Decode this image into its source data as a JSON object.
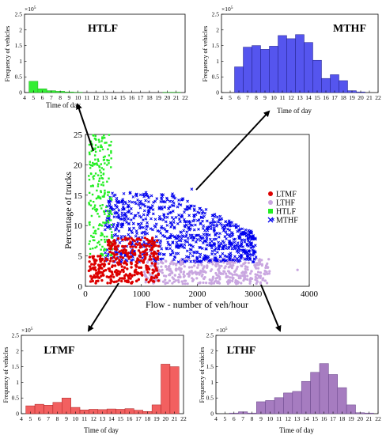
{
  "chart_data": [
    {
      "id": "htlf",
      "type": "bar",
      "title": "HTLF",
      "exponent_label": "×10",
      "exponent_power": "5",
      "xlabel": "Time of day",
      "ylabel": "Frequency of vehicles",
      "color": "#33ee33",
      "stroke": "#22aa22",
      "xlim": [
        4,
        22
      ],
      "ylim": [
        0,
        2.5
      ],
      "xticks": [
        "4",
        "5",
        "6",
        "7",
        "8",
        "9",
        "10",
        "11",
        "12",
        "13",
        "14",
        "15",
        "16",
        "17",
        "18",
        "19",
        "20",
        "21",
        "22"
      ],
      "yticks": [
        "0",
        "0.5",
        "1",
        "1.5",
        "2",
        "2.5"
      ],
      "categories": [
        "5",
        "6",
        "7",
        "8",
        "9",
        "10",
        "11",
        "12",
        "13",
        "14",
        "15",
        "16",
        "17",
        "18",
        "19",
        "20",
        "21"
      ],
      "values": [
        0.36,
        0.12,
        0.06,
        0.04,
        0.02,
        0.01,
        0.0,
        0.0,
        0.0,
        0.0,
        0.0,
        0.0,
        0.0,
        0.0,
        0.0,
        0.01,
        0.01
      ]
    },
    {
      "id": "mthf",
      "type": "bar",
      "title": "MTHF",
      "exponent_label": "×10",
      "exponent_power": "5",
      "xlabel": "Time of day",
      "ylabel": "Frequency of vehicles",
      "color": "#5555ee",
      "stroke": "#222288",
      "xlim": [
        4,
        22
      ],
      "ylim": [
        0,
        2.5
      ],
      "xticks": [
        "4",
        "5",
        "6",
        "7",
        "8",
        "9",
        "10",
        "11",
        "12",
        "13",
        "14",
        "15",
        "16",
        "17",
        "18",
        "19",
        "20",
        "21",
        "22"
      ],
      "yticks": [
        "0",
        "0.5",
        "1",
        "1.5",
        "2",
        "2.5"
      ],
      "categories": [
        "6",
        "7",
        "8",
        "9",
        "10",
        "11",
        "12",
        "13",
        "14",
        "15",
        "16",
        "17",
        "18",
        "19",
        "20",
        "21"
      ],
      "values": [
        0.82,
        1.45,
        1.5,
        1.38,
        1.48,
        1.82,
        1.72,
        1.85,
        1.6,
        1.03,
        0.45,
        0.57,
        0.38,
        0.06,
        0.02,
        0.0
      ]
    },
    {
      "id": "scatter",
      "type": "scatter",
      "xlabel": "Flow - number of veh/hour",
      "ylabel": "Percentage of trucks",
      "xlim": [
        0,
        4000
      ],
      "ylim": [
        0,
        25
      ],
      "xticks": [
        "0",
        "1000",
        "2000",
        "3000",
        "4000"
      ],
      "yticks": [
        "0",
        "5",
        "10",
        "15",
        "20",
        "25"
      ],
      "legend_position": "right",
      "series": [
        {
          "name": "LTMF",
          "marker": "circle",
          "color": "#dd0000"
        },
        {
          "name": "LTHF",
          "marker": "circle",
          "color": "#c9a6e0"
        },
        {
          "name": "HTLF",
          "marker": "square",
          "color": "#22ee22"
        },
        {
          "name": "MTHF",
          "marker": "x",
          "color": "#0000ee"
        }
      ]
    },
    {
      "id": "ltmf",
      "type": "bar",
      "title": "LTMF",
      "exponent_label": "×10",
      "exponent_power": "5",
      "xlabel": "Time of day",
      "ylabel": "Frequency of vehicles",
      "color": "#f26060",
      "stroke": "#aa2222",
      "xlim": [
        4,
        22
      ],
      "ylim": [
        0,
        2.5
      ],
      "xticks": [
        "4",
        "5",
        "6",
        "7",
        "8",
        "9",
        "10",
        "11",
        "12",
        "13",
        "14",
        "15",
        "16",
        "17",
        "18",
        "19",
        "20",
        "21",
        "22"
      ],
      "yticks": [
        "0",
        "0.5",
        "1",
        "1.5",
        "2",
        "2.5"
      ],
      "categories": [
        "5",
        "6",
        "7",
        "8",
        "9",
        "10",
        "11",
        "12",
        "13",
        "14",
        "15",
        "16",
        "17",
        "18",
        "19",
        "20",
        "21"
      ],
      "values": [
        0.25,
        0.3,
        0.27,
        0.36,
        0.5,
        0.2,
        0.12,
        0.14,
        0.13,
        0.15,
        0.14,
        0.16,
        0.11,
        0.07,
        0.28,
        1.58,
        1.5
      ]
    },
    {
      "id": "lthf",
      "type": "bar",
      "title": "LTHF",
      "exponent_label": "×10",
      "exponent_power": "5",
      "xlabel": "Time of day",
      "ylabel": "Frequency of vehicles",
      "color": "#a67cc0",
      "stroke": "#664488",
      "xlim": [
        4,
        22
      ],
      "ylim": [
        0,
        2.5
      ],
      "xticks": [
        "4",
        "5",
        "6",
        "7",
        "8",
        "9",
        "10",
        "11",
        "12",
        "13",
        "14",
        "15",
        "16",
        "17",
        "18",
        "19",
        "20",
        "21",
        "22"
      ],
      "yticks": [
        "0",
        "0.5",
        "1",
        "1.5",
        "2",
        "2.5"
      ],
      "categories": [
        "5",
        "6",
        "7",
        "8",
        "9",
        "10",
        "11",
        "12",
        "13",
        "14",
        "15",
        "16",
        "17",
        "18",
        "19",
        "20",
        "21"
      ],
      "values": [
        0.0,
        0.02,
        0.06,
        0.02,
        0.38,
        0.42,
        0.51,
        0.66,
        0.71,
        1.03,
        1.32,
        1.6,
        1.25,
        0.83,
        0.28,
        0.03,
        0.02
      ]
    }
  ]
}
